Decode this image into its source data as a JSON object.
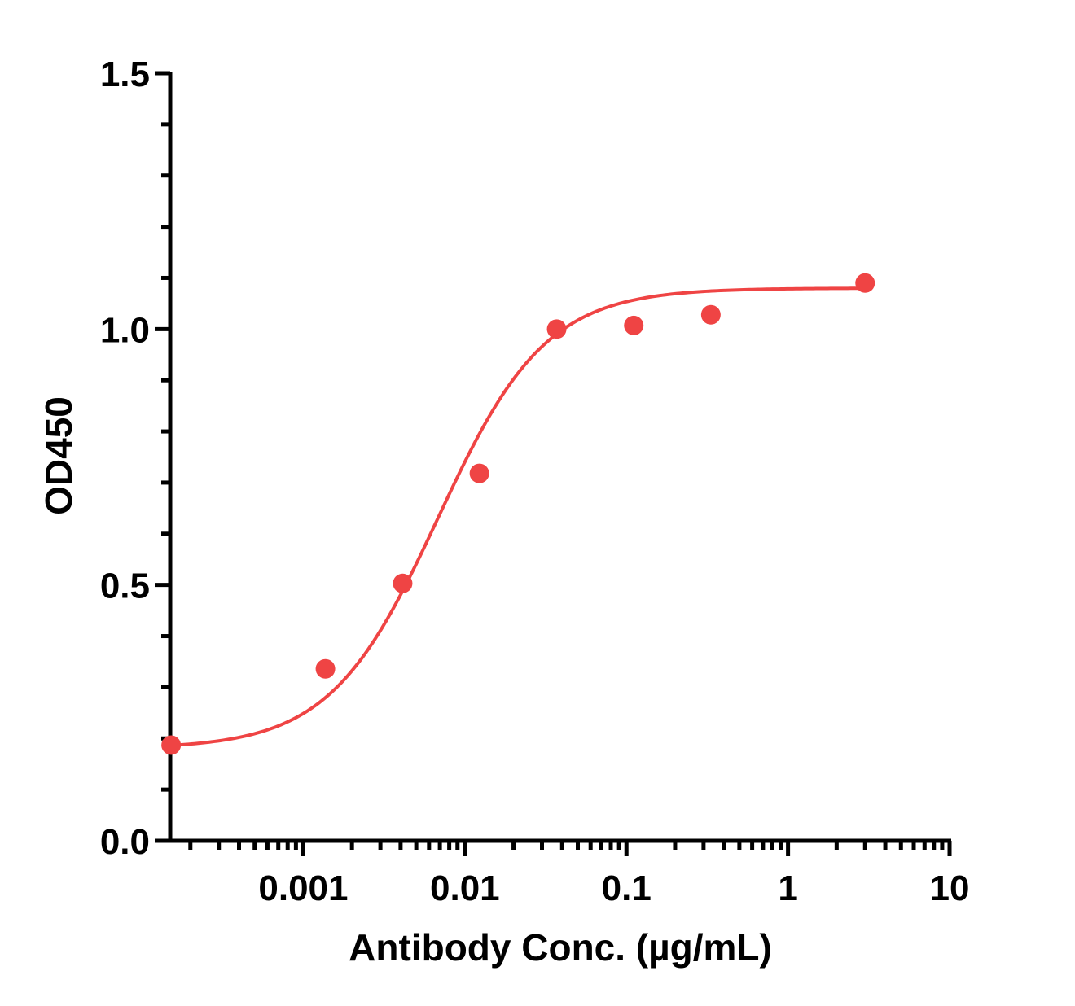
{
  "chart_data": {
    "type": "scatter",
    "title": "",
    "xlabel": "Antibody Conc. (µg/mL)",
    "ylabel": "OD450",
    "xscale": "log",
    "xlim": [
      0.00015,
      10
    ],
    "ylim": [
      0,
      1.5
    ],
    "y_ticks": [
      {
        "value": 0.0,
        "label": "0.0"
      },
      {
        "value": 0.5,
        "label": "0.5"
      },
      {
        "value": 1.0,
        "label": "1.0"
      },
      {
        "value": 1.5,
        "label": "1.5"
      }
    ],
    "y_minor_per_major": 4,
    "x_ticks": [
      {
        "value": 0.001,
        "label": "0.001"
      },
      {
        "value": 0.01,
        "label": "0.01"
      },
      {
        "value": 0.1,
        "label": "0.1"
      },
      {
        "value": 1,
        "label": "1"
      },
      {
        "value": 10,
        "label": "10"
      }
    ],
    "grid": false,
    "color": "#ef4444",
    "series": [
      {
        "x": [
          0.000152,
          0.00137,
          0.00412,
          0.0123,
          0.037,
          0.111,
          0.333,
          3.0
        ],
        "y": [
          0.187,
          0.336,
          0.503,
          0.718,
          1.0,
          1.007,
          1.028,
          1.09
        ],
        "fit": "4PL",
        "fit_params": {
          "bottom": 0.18,
          "top": 1.08,
          "ec50": 0.0068,
          "hill": 1.3
        }
      }
    ]
  }
}
